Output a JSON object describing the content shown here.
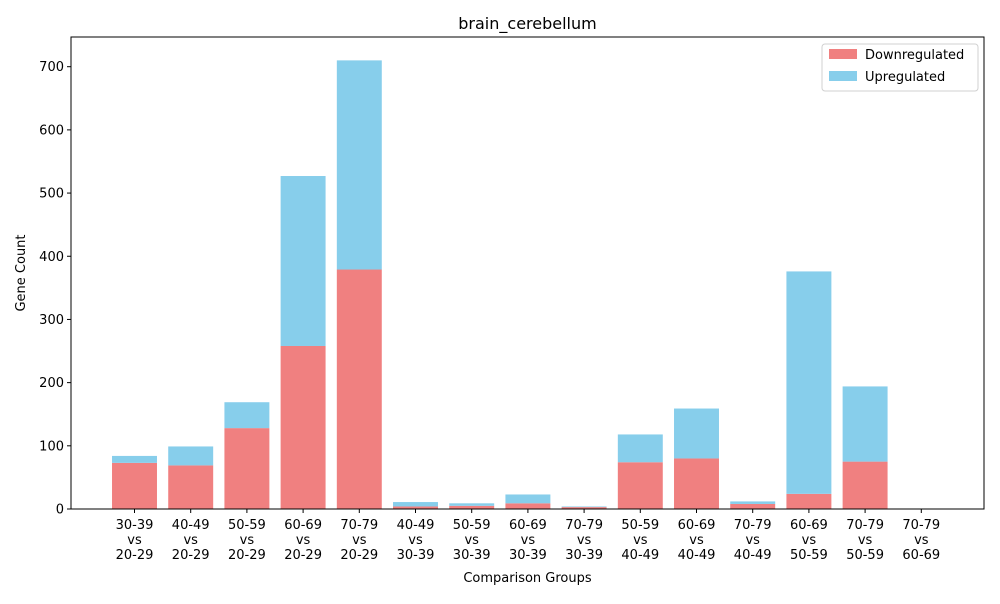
{
  "chart_data": {
    "type": "bar",
    "stacked": true,
    "title": "brain_cerebellum",
    "xlabel": "Comparison Groups",
    "ylabel": "Gene Count",
    "ylim": [
      0,
      747
    ],
    "yticks": [
      0,
      100,
      200,
      300,
      400,
      500,
      600,
      700
    ],
    "grid": false,
    "legend_position": "top-right",
    "categories": [
      [
        "30-39",
        "vs",
        "20-29"
      ],
      [
        "40-49",
        "vs",
        "20-29"
      ],
      [
        "50-59",
        "vs",
        "20-29"
      ],
      [
        "60-69",
        "vs",
        "20-29"
      ],
      [
        "70-79",
        "vs",
        "20-29"
      ],
      [
        "40-49",
        "vs",
        "30-39"
      ],
      [
        "50-59",
        "vs",
        "30-39"
      ],
      [
        "60-69",
        "vs",
        "30-39"
      ],
      [
        "70-79",
        "vs",
        "30-39"
      ],
      [
        "50-59",
        "vs",
        "40-49"
      ],
      [
        "60-69",
        "vs",
        "40-49"
      ],
      [
        "70-79",
        "vs",
        "40-49"
      ],
      [
        "60-69",
        "vs",
        "50-59"
      ],
      [
        "70-79",
        "vs",
        "50-59"
      ],
      [
        "70-79",
        "vs",
        "60-69"
      ]
    ],
    "series": [
      {
        "name": "Downregulated",
        "color": "#f08080",
        "values": [
          73,
          69,
          128,
          258,
          379,
          4,
          5,
          9,
          3,
          74,
          80,
          8,
          24,
          75,
          0
        ]
      },
      {
        "name": "Upregulated",
        "color": "#87ceeb",
        "values": [
          11,
          30,
          41,
          269,
          331,
          7,
          4,
          14,
          1,
          44,
          79,
          4,
          352,
          119,
          0
        ]
      }
    ]
  }
}
